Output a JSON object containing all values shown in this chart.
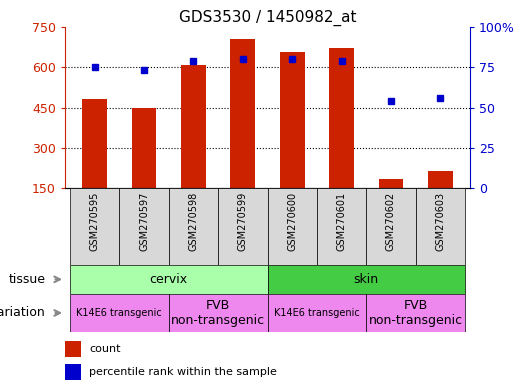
{
  "title": "GDS3530 / 1450982_at",
  "samples": [
    "GSM270595",
    "GSM270597",
    "GSM270598",
    "GSM270599",
    "GSM270600",
    "GSM270601",
    "GSM270602",
    "GSM270603"
  ],
  "counts": [
    480,
    447,
    607,
    705,
    655,
    670,
    185,
    215
  ],
  "percentiles": [
    75,
    73,
    79,
    80,
    80,
    79,
    54,
    56
  ],
  "ylim_left": [
    150,
    750
  ],
  "ylim_right": [
    0,
    100
  ],
  "yticks_left": [
    150,
    300,
    450,
    600,
    750
  ],
  "yticks_right": [
    0,
    25,
    50,
    75,
    100
  ],
  "yticklabels_right": [
    "0",
    "25",
    "50",
    "75",
    "100%"
  ],
  "bar_color": "#cc2200",
  "dot_color": "#0000cc",
  "tissue_colors": [
    "#aaffaa",
    "#44cc44"
  ],
  "genotype_color": "#ee88ee",
  "bg_color": "#d8d8d8",
  "grid_color": "#000000",
  "bar_width": 0.5,
  "legend_count_label": "count",
  "legend_percentile_label": "percentile rank within the sample"
}
